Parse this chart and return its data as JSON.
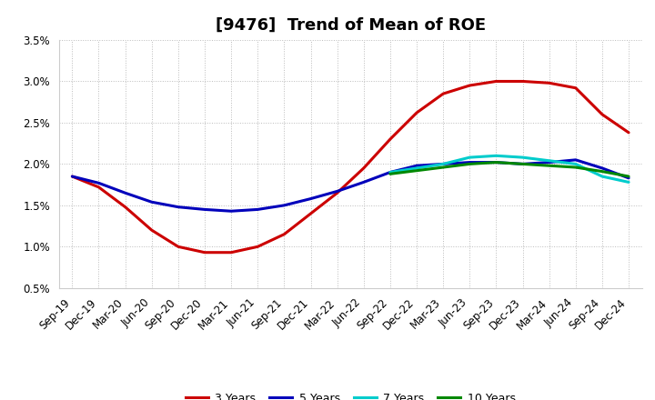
{
  "title": "[9476]  Trend of Mean of ROE",
  "ylim": [
    0.005,
    0.035
  ],
  "yticks": [
    0.005,
    0.01,
    0.015,
    0.02,
    0.025,
    0.03,
    0.035
  ],
  "ytick_labels": [
    "0.5%",
    "1.0%",
    "1.5%",
    "2.0%",
    "2.5%",
    "3.0%",
    "3.5%"
  ],
  "background_color": "#ffffff",
  "plot_bg_color": "#ffffff",
  "grid_color": "#bbbbbb",
  "series": {
    "3yr": {
      "color": "#cc0000",
      "label": "3 Years",
      "x_idx": [
        0,
        1,
        2,
        3,
        4,
        5,
        6,
        7,
        8,
        9,
        10,
        11,
        12,
        13,
        14,
        15,
        16,
        17,
        18,
        19,
        20,
        21
      ],
      "y": [
        0.0185,
        0.0172,
        0.0148,
        0.012,
        0.01,
        0.0093,
        0.0093,
        0.01,
        0.0115,
        0.014,
        0.0165,
        0.0195,
        0.023,
        0.0262,
        0.0285,
        0.0295,
        0.03,
        0.03,
        0.0298,
        0.0292,
        0.026,
        0.0238
      ]
    },
    "5yr": {
      "color": "#0000bb",
      "label": "5 Years",
      "x_idx": [
        0,
        1,
        2,
        3,
        4,
        5,
        6,
        7,
        8,
        9,
        10,
        11,
        12,
        13,
        14,
        15,
        16,
        17,
        18,
        19,
        20,
        21
      ],
      "y": [
        0.0185,
        0.0177,
        0.0165,
        0.0154,
        0.0148,
        0.0145,
        0.0143,
        0.0145,
        0.015,
        0.0158,
        0.0167,
        0.0178,
        0.019,
        0.0198,
        0.02,
        0.0202,
        0.0202,
        0.02,
        0.0202,
        0.0205,
        0.0195,
        0.0183
      ]
    },
    "7yr": {
      "color": "#00cccc",
      "label": "7 Years",
      "x_idx": [
        12,
        13,
        14,
        15,
        16,
        17,
        18,
        19,
        20,
        21
      ],
      "y": [
        0.019,
        0.0195,
        0.02,
        0.0208,
        0.021,
        0.0208,
        0.0204,
        0.02,
        0.0185,
        0.0178
      ]
    },
    "10yr": {
      "color": "#008800",
      "label": "10 Years",
      "x_idx": [
        12,
        13,
        14,
        15,
        16,
        17,
        18,
        19,
        20,
        21
      ],
      "y": [
        0.0188,
        0.0192,
        0.0196,
        0.02,
        0.0202,
        0.02,
        0.0198,
        0.0196,
        0.0191,
        0.0185
      ]
    }
  },
  "x_tick_labels": [
    "Sep-19",
    "Dec-19",
    "Mar-20",
    "Jun-20",
    "Sep-20",
    "Dec-20",
    "Mar-21",
    "Jun-21",
    "Sep-21",
    "Dec-21",
    "Mar-22",
    "Jun-22",
    "Sep-22",
    "Dec-22",
    "Mar-23",
    "Jun-23",
    "Sep-23",
    "Dec-23",
    "Mar-24",
    "Jun-24",
    "Sep-24",
    "Dec-24"
  ],
  "legend_items": [
    "3 Years",
    "5 Years",
    "7 Years",
    "10 Years"
  ],
  "legend_colors": [
    "#cc0000",
    "#0000bb",
    "#00cccc",
    "#008800"
  ],
  "linewidth": 2.2,
  "title_fontsize": 13,
  "tick_fontsize": 8.5,
  "legend_fontsize": 9
}
